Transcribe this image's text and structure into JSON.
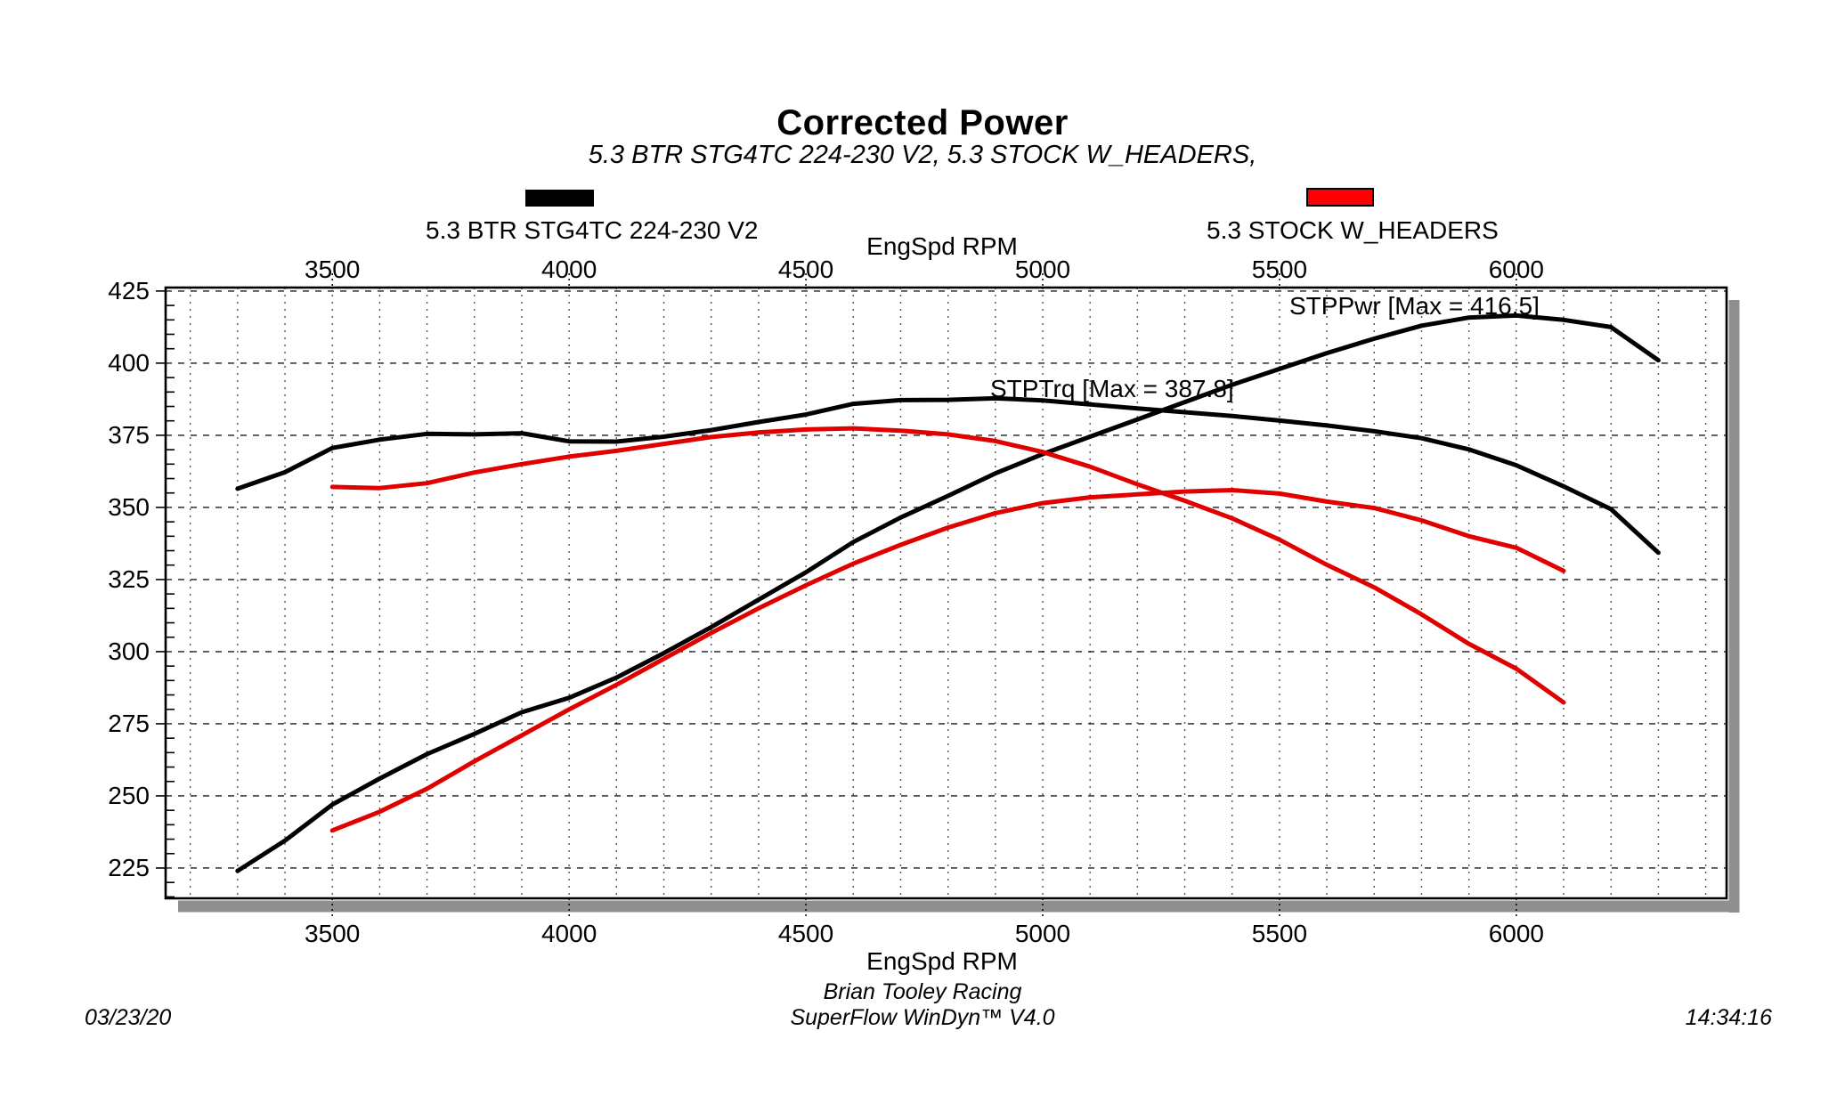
{
  "header": {
    "title": "Corrected Power",
    "subtitle": "5.3 BTR STG4TC 224-230 V2, 5.3 STOCK W_HEADERS,"
  },
  "legend": {
    "items": [
      {
        "label": "5.3 BTR STG4TC 224-230 V2",
        "color": "#000000"
      },
      {
        "label": "5.3 STOCK W_HEADERS",
        "color": "#ff0000"
      }
    ]
  },
  "axes": {
    "x_label_top": "EngSpd RPM",
    "x_label_bottom": "EngSpd RPM"
  },
  "footer": {
    "date": "03/23/20",
    "org": "Brian Tooley Racing",
    "software": "SuperFlow WinDyn™ V4.0",
    "time": "14:34:16"
  },
  "chart_data": {
    "type": "line",
    "title": "Corrected Power",
    "x_axis": {
      "label": "EngSpd RPM",
      "ticks": [
        3500,
        4000,
        4500,
        5000,
        5500,
        6000
      ],
      "range": [
        3148,
        6444
      ],
      "minor_grid_step": 100
    },
    "y_axis": {
      "ticks": [
        425,
        400,
        375,
        350,
        325,
        300,
        275,
        250,
        225
      ],
      "range": [
        214.5,
        426.2
      ],
      "major_grid_step": 25,
      "minor_tick_step": 5
    },
    "grid": {
      "horizontal": "dashed",
      "vertical": "dotted"
    },
    "annotations": [
      {
        "text": "STPPwr [Max = 416.5]",
        "series": "stppwr-btr"
      },
      {
        "text": "STPTrq [Max = 387.8]",
        "series": "stptrq-btr"
      }
    ],
    "series": [
      {
        "id": "stppwr-btr",
        "name": "STPPwr 5.3 BTR STG4TC 224-230 V2",
        "color": "#000000",
        "points": [
          [
            3300,
            224.0
          ],
          [
            3400,
            234.5
          ],
          [
            3500,
            247.0
          ],
          [
            3600,
            256.0
          ],
          [
            3700,
            264.5
          ],
          [
            3800,
            271.5
          ],
          [
            3900,
            279.0
          ],
          [
            4000,
            284.0
          ],
          [
            4100,
            291.0
          ],
          [
            4200,
            299.5
          ],
          [
            4300,
            308.5
          ],
          [
            4400,
            318.0
          ],
          [
            4500,
            327.5
          ],
          [
            4600,
            338.0
          ],
          [
            4700,
            346.5
          ],
          [
            4800,
            354.0
          ],
          [
            4900,
            361.8
          ],
          [
            5000,
            368.5
          ],
          [
            5100,
            374.5
          ],
          [
            5200,
            380.5
          ],
          [
            5300,
            386.5
          ],
          [
            5400,
            392.5
          ],
          [
            5500,
            398.0
          ],
          [
            5600,
            403.5
          ],
          [
            5700,
            408.5
          ],
          [
            5800,
            413.0
          ],
          [
            5900,
            415.8
          ],
          [
            6000,
            416.5
          ],
          [
            6100,
            415.0
          ],
          [
            6200,
            412.5
          ],
          [
            6300,
            401.0
          ]
        ]
      },
      {
        "id": "stptrq-btr",
        "name": "STPTrq 5.3 BTR STG4TC 224-230 V2",
        "color": "#000000",
        "points": [
          [
            3300,
            356.5
          ],
          [
            3400,
            362.2
          ],
          [
            3500,
            370.6
          ],
          [
            3600,
            373.5
          ],
          [
            3700,
            375.5
          ],
          [
            3800,
            375.3
          ],
          [
            3900,
            375.7
          ],
          [
            4000,
            372.9
          ],
          [
            4100,
            372.8
          ],
          [
            4200,
            374.5
          ],
          [
            4300,
            376.8
          ],
          [
            4400,
            379.6
          ],
          [
            4500,
            382.2
          ],
          [
            4600,
            385.9
          ],
          [
            4700,
            387.2
          ],
          [
            4800,
            387.3
          ],
          [
            4900,
            387.8
          ],
          [
            5000,
            387.1
          ],
          [
            5100,
            385.7
          ],
          [
            5200,
            384.3
          ],
          [
            5300,
            383.0
          ],
          [
            5400,
            381.7
          ],
          [
            5500,
            380.1
          ],
          [
            5600,
            378.4
          ],
          [
            5700,
            376.4
          ],
          [
            5800,
            374.0
          ],
          [
            5900,
            370.1
          ],
          [
            6000,
            364.6
          ],
          [
            6100,
            357.3
          ],
          [
            6200,
            349.4
          ],
          [
            6300,
            334.3
          ]
        ]
      },
      {
        "id": "stppwr-stock",
        "name": "STPPwr 5.3 STOCK W_HEADERS",
        "color": "#e00000",
        "points": [
          [
            3500,
            238.0
          ],
          [
            3600,
            244.5
          ],
          [
            3700,
            252.5
          ],
          [
            3800,
            262.0
          ],
          [
            3900,
            271.0
          ],
          [
            4000,
            280.0
          ],
          [
            4100,
            288.5
          ],
          [
            4200,
            297.5
          ],
          [
            4300,
            306.5
          ],
          [
            4400,
            315.0
          ],
          [
            4500,
            323.0
          ],
          [
            4600,
            330.5
          ],
          [
            4700,
            337.0
          ],
          [
            4800,
            343.0
          ],
          [
            4900,
            348.0
          ],
          [
            5000,
            351.5
          ],
          [
            5100,
            353.5
          ],
          [
            5200,
            354.5
          ],
          [
            5300,
            355.5
          ],
          [
            5400,
            356.0
          ],
          [
            5500,
            354.8
          ],
          [
            5600,
            352.0
          ],
          [
            5700,
            349.8
          ],
          [
            5800,
            345.5
          ],
          [
            5900,
            340.0
          ],
          [
            6000,
            336.0
          ],
          [
            6100,
            328.0
          ]
        ]
      },
      {
        "id": "stptrq-stock",
        "name": "STPTrq 5.3 STOCK W_HEADERS",
        "color": "#e00000",
        "points": [
          [
            3500,
            357.1
          ],
          [
            3600,
            356.7
          ],
          [
            3700,
            358.4
          ],
          [
            3800,
            362.1
          ],
          [
            3900,
            365.0
          ],
          [
            4000,
            367.6
          ],
          [
            4100,
            369.6
          ],
          [
            4200,
            372.0
          ],
          [
            4300,
            374.4
          ],
          [
            4400,
            376.0
          ],
          [
            4500,
            377.0
          ],
          [
            4600,
            377.4
          ],
          [
            4700,
            376.6
          ],
          [
            4800,
            375.3
          ],
          [
            4900,
            373.0
          ],
          [
            5000,
            369.2
          ],
          [
            5100,
            364.1
          ],
          [
            5200,
            358.0
          ],
          [
            5300,
            352.3
          ],
          [
            5400,
            346.2
          ],
          [
            5500,
            338.8
          ],
          [
            5600,
            330.1
          ],
          [
            5700,
            322.3
          ],
          [
            5800,
            312.9
          ],
          [
            5900,
            302.7
          ],
          [
            6000,
            294.1
          ],
          [
            6100,
            282.4
          ]
        ]
      }
    ]
  }
}
